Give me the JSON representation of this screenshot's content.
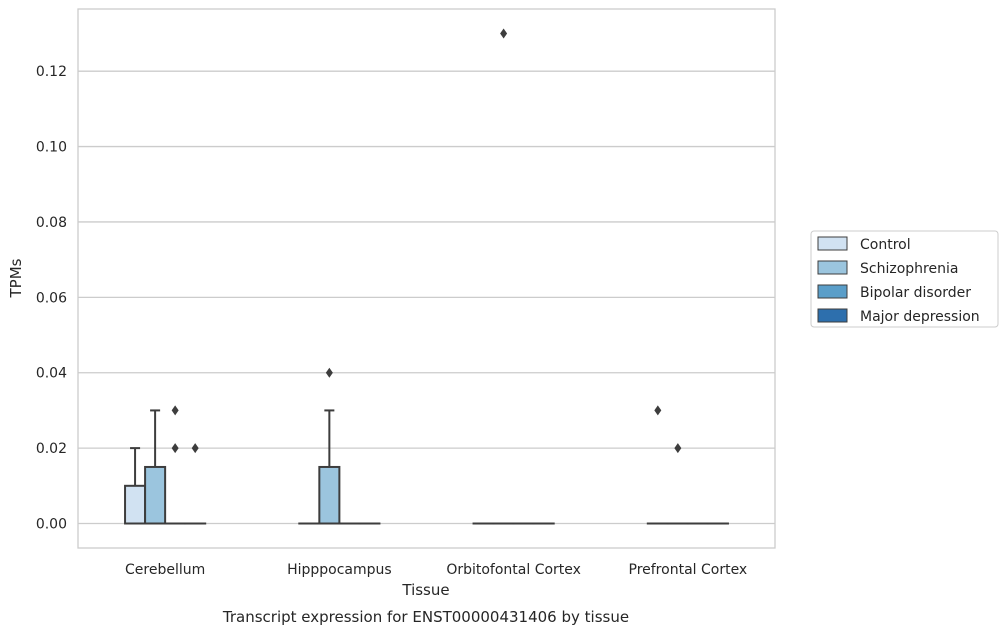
{
  "chart_data": {
    "type": "boxplot",
    "title": "Transcript expression for ENST00000431406 by tissue",
    "xlabel": "Tissue",
    "ylabel": "TPMs",
    "ylim": [
      -0.0065,
      0.1365
    ],
    "yticks": [
      0.0,
      0.02,
      0.04,
      0.06,
      0.08,
      0.1,
      0.12
    ],
    "ytick_labels": [
      "0.00",
      "0.02",
      "0.04",
      "0.06",
      "0.08",
      "0.10",
      "0.12"
    ],
    "grid": true,
    "legend_position": "right",
    "categories": [
      "Cerebellum",
      "Hipppocampus",
      "Orbitofontal Cortex",
      "Prefrontal Cortex"
    ],
    "series": [
      {
        "name": "Control",
        "color": "#d1e2f2",
        "boxes": [
          {
            "q1": 0.0,
            "median": 0.0,
            "q3": 0.01,
            "whisker_low": 0.0,
            "whisker_high": 0.02,
            "outliers": []
          },
          {
            "q1": 0.0,
            "median": 0.0,
            "q3": 0.0,
            "whisker_low": 0.0,
            "whisker_high": 0.0,
            "outliers": []
          },
          {
            "q1": 0.0,
            "median": 0.0,
            "q3": 0.0,
            "whisker_low": 0.0,
            "whisker_high": 0.0,
            "outliers": []
          },
          {
            "q1": 0.0,
            "median": 0.0,
            "q3": 0.0,
            "whisker_low": 0.0,
            "whisker_high": 0.0,
            "outliers": [
              0.03
            ]
          }
        ]
      },
      {
        "name": "Schizophrenia",
        "color": "#9bc5de",
        "boxes": [
          {
            "q1": 0.0,
            "median": 0.0,
            "q3": 0.015,
            "whisker_low": 0.0,
            "whisker_high": 0.03,
            "outliers": []
          },
          {
            "q1": 0.0,
            "median": 0.0,
            "q3": 0.015,
            "whisker_low": 0.0,
            "whisker_high": 0.03,
            "outliers": [
              0.04
            ]
          },
          {
            "q1": 0.0,
            "median": 0.0,
            "q3": 0.0,
            "whisker_low": 0.0,
            "whisker_high": 0.0,
            "outliers": [
              0.13
            ]
          },
          {
            "q1": 0.0,
            "median": 0.0,
            "q3": 0.0,
            "whisker_low": 0.0,
            "whisker_high": 0.0,
            "outliers": [
              0.02
            ]
          }
        ]
      },
      {
        "name": "Bipolar disorder",
        "color": "#5a9ec9",
        "boxes": [
          {
            "q1": 0.0,
            "median": 0.0,
            "q3": 0.0,
            "whisker_low": 0.0,
            "whisker_high": 0.0,
            "outliers": [
              0.02,
              0.03
            ]
          },
          {
            "q1": 0.0,
            "median": 0.0,
            "q3": 0.0,
            "whisker_low": 0.0,
            "whisker_high": 0.0,
            "outliers": []
          },
          {
            "q1": 0.0,
            "median": 0.0,
            "q3": 0.0,
            "whisker_low": 0.0,
            "whisker_high": 0.0,
            "outliers": []
          },
          {
            "q1": 0.0,
            "median": 0.0,
            "q3": 0.0,
            "whisker_low": 0.0,
            "whisker_high": 0.0,
            "outliers": []
          }
        ]
      },
      {
        "name": "Major depression",
        "color": "#2d6fad",
        "boxes": [
          {
            "q1": 0.0,
            "median": 0.0,
            "q3": 0.0,
            "whisker_low": 0.0,
            "whisker_high": 0.0,
            "outliers": [
              0.02
            ]
          },
          {
            "q1": 0.0,
            "median": 0.0,
            "q3": 0.0,
            "whisker_low": 0.0,
            "whisker_high": 0.0,
            "outliers": []
          },
          {
            "q1": 0.0,
            "median": 0.0,
            "q3": 0.0,
            "whisker_low": 0.0,
            "whisker_high": 0.0,
            "outliers": []
          },
          {
            "q1": 0.0,
            "median": 0.0,
            "q3": 0.0,
            "whisker_low": 0.0,
            "whisker_high": 0.0,
            "outliers": []
          }
        ]
      }
    ]
  }
}
